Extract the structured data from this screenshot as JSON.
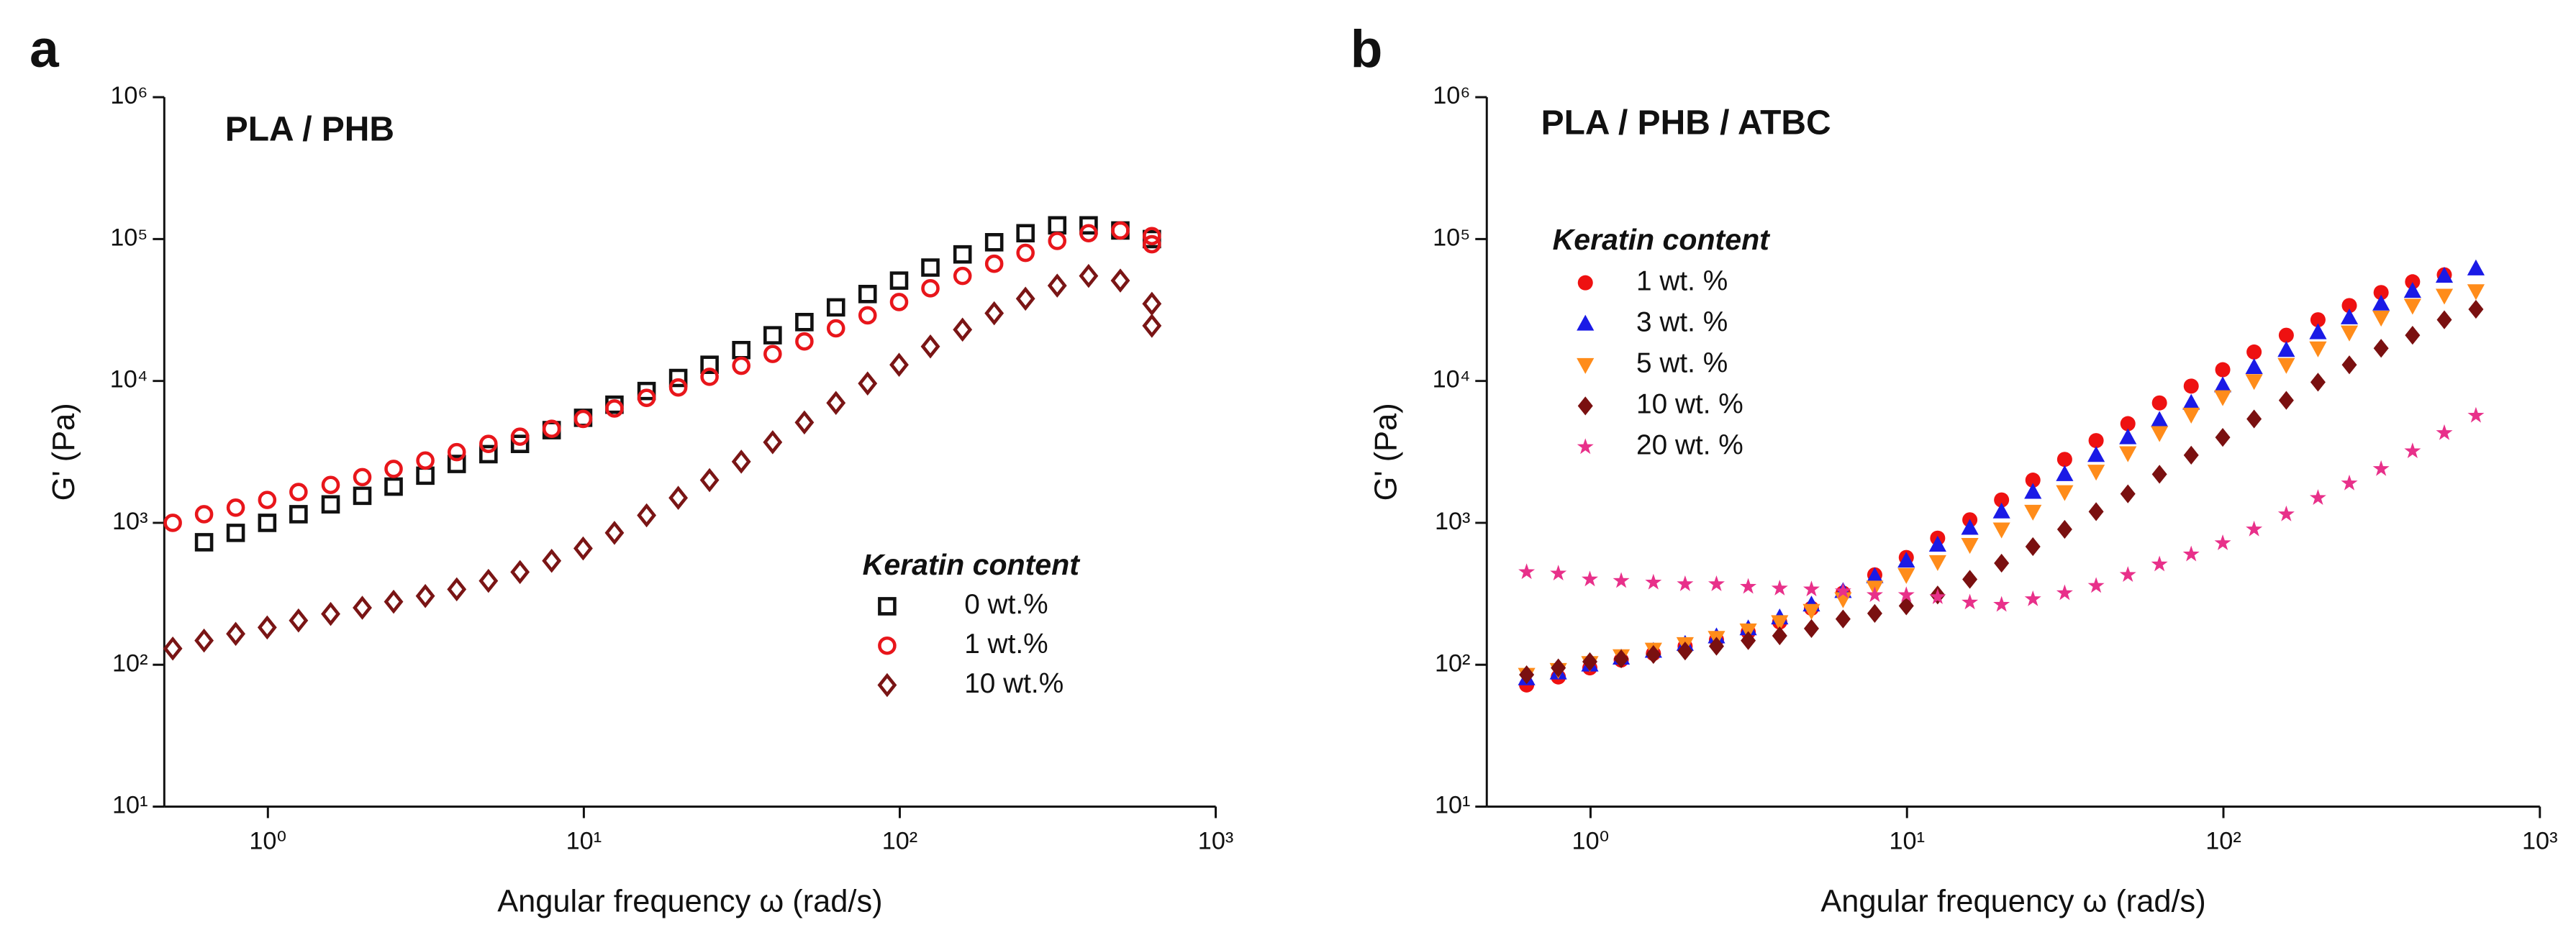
{
  "chart_data": [
    {
      "panel_label": "a",
      "type": "scatter",
      "title": "PLA / PHB",
      "xlabel": "Angular frequency ω (rad/s)",
      "ylabel": "G' (Pa)",
      "legend_title": "Keratin content",
      "xscale": "log",
      "yscale": "log",
      "xlim": [
        0.47,
        1000
      ],
      "ylim": [
        10,
        1000000
      ],
      "xticks": [
        {
          "value": 1,
          "label": "10⁰"
        },
        {
          "value": 10,
          "label": "10¹"
        },
        {
          "value": 100,
          "label": "10²"
        },
        {
          "value": 1000,
          "label": "10³"
        }
      ],
      "yticks": [
        {
          "value": 10,
          "label": "10¹"
        },
        {
          "value": 100,
          "label": "10²"
        },
        {
          "value": 1000,
          "label": "10³"
        },
        {
          "value": 10000,
          "label": "10⁴"
        },
        {
          "value": 100000,
          "label": "10⁵"
        },
        {
          "value": 1000000,
          "label": "10⁶"
        }
      ],
      "x": [
        0.5,
        0.628,
        0.791,
        0.995,
        1.25,
        1.58,
        1.99,
        2.5,
        3.15,
        3.96,
        4.99,
        6.28,
        7.91,
        9.95,
        12.5,
        15.8,
        19.9,
        25,
        31.5,
        39.6,
        49.9,
        62.8,
        79.1,
        99.5,
        125,
        158,
        199,
        250,
        315,
        396,
        499,
        628,
        628
      ],
      "series": [
        {
          "name": "0 wt.%",
          "color": "#111111",
          "marker": "square-open",
          "values": [
            null,
            730,
            850,
            1000,
            1150,
            1350,
            1550,
            1800,
            2150,
            2600,
            3050,
            3600,
            4500,
            5500,
            6800,
            8500,
            10500,
            13000,
            16500,
            21000,
            26000,
            33000,
            41000,
            51000,
            63000,
            78000,
            95000,
            110000,
            125000,
            125000,
            115000,
            100000,
            null
          ]
        },
        {
          "name": "1 wt.%",
          "color": "#e8161b",
          "marker": "circle-open",
          "values": [
            1000,
            1150,
            1280,
            1450,
            1650,
            1850,
            2100,
            2400,
            2750,
            3150,
            3600,
            4050,
            4600,
            5400,
            6400,
            7600,
            9000,
            10700,
            12800,
            15500,
            19000,
            23500,
            29000,
            36000,
            45000,
            55000,
            67000,
            80000,
            97000,
            110000,
            115000,
            105000,
            92000
          ]
        },
        {
          "name": "10 wt.%",
          "color": "#7a1515",
          "marker": "diamond-open",
          "values": [
            130,
            148,
            165,
            183,
            205,
            228,
            252,
            278,
            305,
            340,
            390,
            450,
            540,
            660,
            850,
            1130,
            1500,
            2000,
            2700,
            3700,
            5100,
            7000,
            9600,
            13000,
            17500,
            23000,
            30000,
            38000,
            47000,
            55000,
            51000,
            35000,
            24500
          ]
        }
      ]
    },
    {
      "panel_label": "b",
      "type": "scatter",
      "title": "PLA / PHB / ATBC",
      "xlabel": "Angular frequency ω (rad/s)",
      "ylabel": "G' (Pa)",
      "legend_title": "Keratin content",
      "xscale": "log",
      "yscale": "log",
      "xlim": [
        0.47,
        1000
      ],
      "ylim": [
        10,
        1000000
      ],
      "xticks": [
        {
          "value": 1,
          "label": "10⁰"
        },
        {
          "value": 10,
          "label": "10¹"
        },
        {
          "value": 100,
          "label": "10²"
        },
        {
          "value": 1000,
          "label": "10³"
        }
      ],
      "yticks": [
        {
          "value": 10,
          "label": "10¹"
        },
        {
          "value": 100,
          "label": "10²"
        },
        {
          "value": 1000,
          "label": "10³"
        },
        {
          "value": 10000,
          "label": "10⁴"
        },
        {
          "value": 100000,
          "label": "10⁵"
        },
        {
          "value": 1000000,
          "label": "10⁶"
        }
      ],
      "x": [
        0.628,
        0.791,
        0.995,
        1.25,
        1.58,
        1.99,
        2.5,
        3.15,
        3.96,
        4.99,
        6.28,
        7.91,
        9.95,
        12.5,
        15.8,
        19.9,
        25,
        31.5,
        39.6,
        49.9,
        62.8,
        79.1,
        99.5,
        125,
        158,
        199,
        250,
        315,
        396,
        499,
        628
      ],
      "series": [
        {
          "name": "1 wt. %",
          "color": "#ee1111",
          "marker": "circle",
          "values": [
            72,
            82,
            95,
            108,
            120,
            135,
            150,
            170,
            200,
            250,
            320,
            430,
            570,
            780,
            1050,
            1450,
            2000,
            2800,
            3800,
            5000,
            7000,
            9200,
            12000,
            16000,
            21000,
            27000,
            34000,
            42000,
            50000,
            56000,
            null
          ]
        },
        {
          "name": "3 wt. %",
          "color": "#1a1ae6",
          "marker": "triangle",
          "values": [
            80,
            88,
            100,
            112,
            125,
            140,
            158,
            180,
            215,
            265,
            330,
            420,
            540,
            700,
            920,
            1200,
            1650,
            2200,
            3000,
            4000,
            5300,
            7000,
            9300,
            12500,
            16500,
            22000,
            28000,
            35000,
            43000,
            55000,
            62000
          ]
        },
        {
          "name": "5 wt. %",
          "color": "#ff8c1a",
          "marker": "triangle-down",
          "values": [
            85,
            92,
            103,
            115,
            128,
            140,
            155,
            175,
            200,
            240,
            290,
            350,
            430,
            530,
            700,
            900,
            1200,
            1650,
            2300,
            3100,
            4300,
            5800,
            7700,
            10000,
            13000,
            17000,
            22000,
            28000,
            34000,
            40000,
            43000
          ]
        },
        {
          "name": "10 wt. %",
          "color": "#7a1010",
          "marker": "diamond",
          "values": [
            85,
            95,
            105,
            110,
            118,
            125,
            135,
            148,
            160,
            180,
            210,
            230,
            260,
            310,
            400,
            520,
            680,
            900,
            1200,
            1600,
            2200,
            3000,
            4000,
            5400,
            7300,
            9800,
            13000,
            17000,
            21000,
            27000,
            32000
          ]
        },
        {
          "name": "20 wt. %",
          "color": "#e8308a",
          "marker": "star",
          "values": [
            450,
            440,
            400,
            390,
            380,
            370,
            370,
            355,
            345,
            340,
            330,
            310,
            310,
            300,
            275,
            265,
            290,
            320,
            360,
            430,
            510,
            600,
            720,
            900,
            1150,
            1500,
            1900,
            2400,
            3200,
            4300,
            5700
          ]
        }
      ]
    }
  ]
}
